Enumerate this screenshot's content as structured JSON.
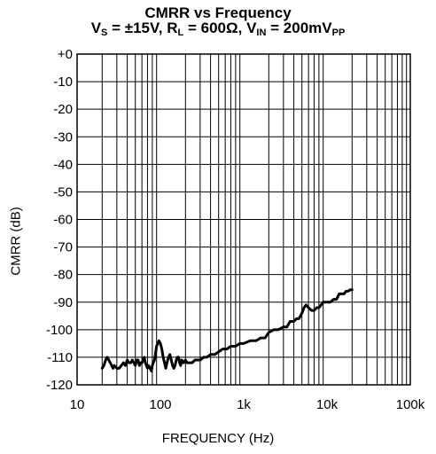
{
  "title": {
    "line1": "CMRR vs Frequency",
    "line2": {
      "v_prefix": "V",
      "v_sub": "S",
      "v_value": " = ±15V, ",
      "r_prefix": "R",
      "r_sub": "L",
      "r_value": " = 600Ω, ",
      "vin_prefix": "V",
      "vin_sub": "IN",
      "vin_value": " = 200mV",
      "vin_unit_sub": "PP"
    }
  },
  "chart_data": {
    "type": "line",
    "title": "CMRR vs Frequency",
    "xlabel": "FREQUENCY (Hz)",
    "ylabel": "CMRR (dB)",
    "x_scale": "log",
    "xlim": [
      10,
      100000
    ],
    "ylim": [
      -120,
      0
    ],
    "grid": true,
    "x_ticks": [
      10,
      100,
      1000,
      10000,
      100000
    ],
    "x_tick_labels": [
      "10",
      "100",
      "1k",
      "10k",
      "100k"
    ],
    "y_ticks": [
      0,
      -10,
      -20,
      -30,
      -40,
      -50,
      -60,
      -70,
      -80,
      -90,
      -100,
      -110,
      -120
    ],
    "y_tick_labels": [
      "+0",
      "-10",
      "-20",
      "-30",
      "-40",
      "-50",
      "-60",
      "-70",
      "-80",
      "-90",
      "-100",
      "-110",
      "-120"
    ],
    "series": [
      {
        "x": [
          20,
          21,
          22,
          23,
          24,
          25,
          26,
          27,
          28,
          30,
          32,
          34,
          36,
          38,
          40,
          42,
          44,
          46,
          48,
          50,
          52,
          54,
          56,
          58,
          60,
          62,
          64,
          66,
          68,
          70,
          72,
          75,
          78,
          80,
          82,
          85,
          88,
          90,
          93,
          96,
          100,
          104,
          108,
          112,
          116,
          120,
          125,
          130,
          135,
          140,
          145,
          150,
          155,
          160,
          165,
          170,
          175,
          180,
          190,
          200,
          210,
          220,
          240,
          260,
          280,
          300,
          330,
          360,
          400,
          450,
          500,
          560,
          630,
          700,
          800,
          900,
          1000,
          1200,
          1400,
          1600,
          1800,
          2000,
          2300,
          2600,
          3000,
          3300,
          3600,
          4000,
          4300,
          4600,
          5000,
          5300,
          5600,
          6000,
          6500,
          7000,
          7500,
          8000,
          8500,
          9000,
          10000,
          11000,
          12000,
          13000,
          14000,
          15000,
          16000,
          17000,
          18000,
          19000,
          20000
        ],
        "y": [
          -114,
          -113,
          -111,
          -110,
          -111,
          -112,
          -113,
          -114,
          -113,
          -114,
          -114,
          -113,
          -112,
          -113,
          -111,
          -112,
          -112,
          -111,
          -112,
          -113,
          -111,
          -111,
          -113,
          -112,
          -112,
          -111,
          -110,
          -112,
          -113,
          -114,
          -113,
          -114,
          -115,
          -113,
          -112,
          -111,
          -108,
          -106,
          -105,
          -104,
          -105,
          -107,
          -110,
          -112,
          -114,
          -112,
          -110,
          -109,
          -111,
          -113,
          -114,
          -113,
          -111,
          -110,
          -110,
          -112,
          -113,
          -111,
          -112,
          -111,
          -112,
          -112,
          -112,
          -111,
          -111,
          -111,
          -110,
          -110,
          -109,
          -109,
          -108,
          -107,
          -107,
          -106,
          -106,
          -105,
          -105,
          -104,
          -104,
          -103,
          -103,
          -101,
          -100,
          -100,
          -99,
          -99,
          -97,
          -97,
          -96,
          -96,
          -94,
          -92,
          -91,
          -92,
          -93,
          -93,
          -92,
          -92,
          -91,
          -90,
          -90,
          -90,
          -89,
          -89,
          -87,
          -87,
          -87,
          -86,
          -86,
          -85.5,
          -85.5
        ]
      }
    ]
  }
}
